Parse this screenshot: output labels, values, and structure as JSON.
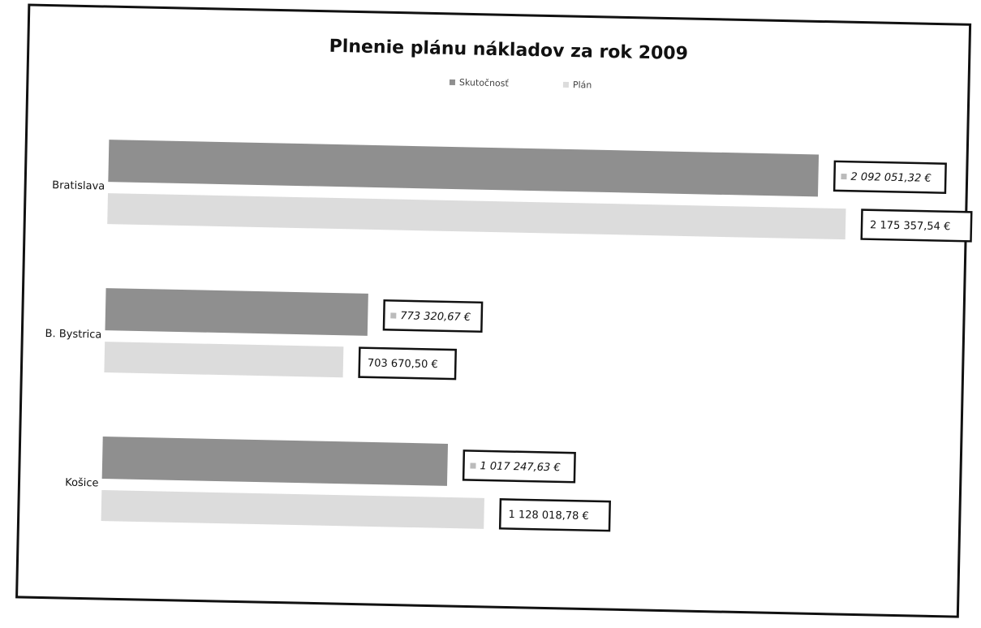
{
  "chart_data": {
    "type": "barh",
    "title": "Plnenie plánu nákladov za rok 2009",
    "categories": [
      "Bratislava",
      "B. Bystrica",
      "Košice"
    ],
    "series": [
      {
        "name": "Skutočnosť",
        "color": "#8f8f8f",
        "values": [
          2092051.32,
          773320.67,
          1017247.63
        ],
        "value_labels": [
          "2 092 051,32 €",
          "773 320,67 €",
          "1 017 247,63 €"
        ]
      },
      {
        "name": "Plán",
        "color": "#dcdcdc",
        "values": [
          2175357.54,
          703670.5,
          1128018.78
        ],
        "value_labels": [
          "2 175 357,54 €",
          "703 670,50 €",
          "1 128 018,78 €"
        ]
      }
    ],
    "xlim": [
      0,
      2200000
    ],
    "legend": "top"
  }
}
